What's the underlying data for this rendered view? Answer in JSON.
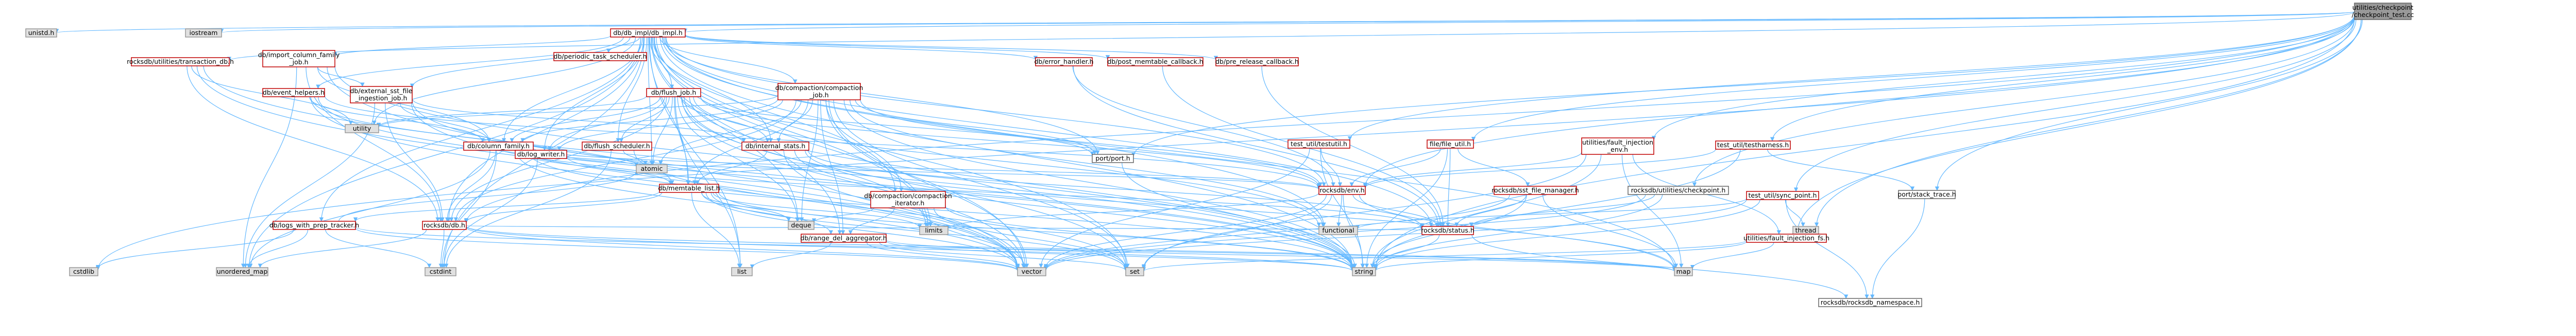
{
  "title": "utilities/checkpoint/checkpoint_test.cc include dependency graph",
  "colors": {
    "root_fill": "#999999",
    "root_stroke": "#666666",
    "local_fill": "#ffffff",
    "local_stroke": "#c00000",
    "sys_fill": "#e0e0e0",
    "sys_stroke": "#999999",
    "ok_fill": "#ffffff",
    "ok_stroke": "#666666",
    "edge": "#63b8ff",
    "text": "#000000"
  },
  "nodes": [
    {
      "id": "root",
      "type": "root",
      "lines": [
        "utilities/checkpoint",
        "/checkpoint_test.cc"
      ]
    },
    {
      "id": "unistd",
      "type": "sys",
      "lines": [
        "unistd.h"
      ]
    },
    {
      "id": "iostream",
      "type": "sys",
      "lines": [
        "iostream"
      ]
    },
    {
      "id": "dbimpl",
      "type": "local",
      "lines": [
        "db/db_impl/db_impl.h"
      ]
    },
    {
      "id": "atomic",
      "type": "sys",
      "lines": [
        "atomic"
      ]
    },
    {
      "id": "cstdint",
      "type": "sys",
      "lines": [
        "cstdint"
      ]
    },
    {
      "id": "deque",
      "type": "sys",
      "lines": [
        "deque"
      ]
    },
    {
      "id": "functional",
      "type": "sys",
      "lines": [
        "functional"
      ]
    },
    {
      "id": "limits",
      "type": "sys",
      "lines": [
        "limits"
      ]
    },
    {
      "id": "list",
      "type": "sys",
      "lines": [
        "list"
      ]
    },
    {
      "id": "map",
      "type": "sys",
      "lines": [
        "map"
      ]
    },
    {
      "id": "set",
      "type": "sys",
      "lines": [
        "set"
      ]
    },
    {
      "id": "string",
      "type": "sys",
      "lines": [
        "string"
      ]
    },
    {
      "id": "utility",
      "type": "sys",
      "lines": [
        "utility"
      ]
    },
    {
      "id": "vector",
      "type": "sys",
      "lines": [
        "vector"
      ]
    },
    {
      "id": "unordered_map",
      "type": "sys",
      "lines": [
        "unordered_map"
      ]
    },
    {
      "id": "cstdlib",
      "type": "sys",
      "lines": [
        "cstdlib"
      ]
    },
    {
      "id": "thread",
      "type": "sys",
      "lines": [
        "thread"
      ]
    },
    {
      "id": "colfam",
      "type": "local",
      "lines": [
        "db/column_family.h"
      ]
    },
    {
      "id": "compiter",
      "type": "local",
      "lines": [
        "db/compaction/compaction",
        "_iterator.h"
      ]
    },
    {
      "id": "compjob",
      "type": "local",
      "lines": [
        "db/compaction/compaction",
        "_job.h"
      ]
    },
    {
      "id": "errhandler",
      "type": "local",
      "lines": [
        "db/error_handler.h"
      ]
    },
    {
      "id": "evhelpers",
      "type": "local",
      "lines": [
        "db/event_helpers.h"
      ]
    },
    {
      "id": "extsst",
      "type": "local",
      "lines": [
        "db/external_sst_file",
        "_ingestion_job.h"
      ]
    },
    {
      "id": "flushjob",
      "type": "local",
      "lines": [
        "db/flush_job.h"
      ]
    },
    {
      "id": "flushsched",
      "type": "local",
      "lines": [
        "db/flush_scheduler.h"
      ]
    },
    {
      "id": "importcf",
      "type": "local",
      "lines": [
        "db/import_column_family",
        "_job.h"
      ]
    },
    {
      "id": "internalstats",
      "type": "local",
      "lines": [
        "db/internal_stats.h"
      ]
    },
    {
      "id": "logwriter",
      "type": "local",
      "lines": [
        "db/log_writer.h"
      ]
    },
    {
      "id": "logsprep",
      "type": "local",
      "lines": [
        "db/logs_with_prep_tracker.h"
      ]
    },
    {
      "id": "memlist",
      "type": "local",
      "lines": [
        "db/memtable_list.h"
      ]
    },
    {
      "id": "periodic",
      "type": "local",
      "lines": [
        "db/periodic_task_scheduler.h"
      ]
    },
    {
      "id": "postmem",
      "type": "local",
      "lines": [
        "db/post_memtable_callback.h"
      ]
    },
    {
      "id": "prerelease",
      "type": "local",
      "lines": [
        "db/pre_release_callback.h"
      ]
    },
    {
      "id": "rangedel",
      "type": "local",
      "lines": [
        "db/range_del_aggregator.h"
      ]
    },
    {
      "id": "portport",
      "type": "ok",
      "lines": [
        "port/port.h"
      ]
    },
    {
      "id": "stacktrace",
      "type": "ok",
      "lines": [
        "port/stack_trace.h"
      ]
    },
    {
      "id": "rocksdb_db",
      "type": "local",
      "lines": [
        "rocksdb/db.h"
      ]
    },
    {
      "id": "rocksdb_env",
      "type": "local",
      "lines": [
        "rocksdb/env.h"
      ]
    },
    {
      "id": "rocksdb_status",
      "type": "local",
      "lines": [
        "rocksdb/status.h"
      ]
    },
    {
      "id": "rocksdb_ns",
      "type": "ok",
      "lines": [
        "rocksdb/rocksdb_namespace.h"
      ]
    },
    {
      "id": "sstfilemgr",
      "type": "local",
      "lines": [
        "rocksdb/sst_file_manager.h"
      ]
    },
    {
      "id": "util_checkpoint",
      "type": "ok",
      "lines": [
        "rocksdb/utilities/checkpoint.h"
      ]
    },
    {
      "id": "util_txdb",
      "type": "local",
      "lines": [
        "rocksdb/utilities/transaction_db.h"
      ]
    },
    {
      "id": "fileutil",
      "type": "local",
      "lines": [
        "file/file_util.h"
      ]
    },
    {
      "id": "testharness",
      "type": "local",
      "lines": [
        "test_util/testharness.h"
      ]
    },
    {
      "id": "syncpoint",
      "type": "local",
      "lines": [
        "test_util/sync_point.h"
      ]
    },
    {
      "id": "testutil",
      "type": "local",
      "lines": [
        "test_util/testutil.h"
      ]
    },
    {
      "id": "faultenv",
      "type": "local",
      "lines": [
        "utilities/fault_injection",
        "_env.h"
      ]
    },
    {
      "id": "faultfs",
      "type": "local",
      "lines": [
        "utilities/fault_injection_fs.h"
      ]
    }
  ],
  "edges": [
    [
      "root",
      "unistd"
    ],
    [
      "root",
      "iostream"
    ],
    [
      "root",
      "dbimpl"
    ],
    [
      "root",
      "rocksdb_db"
    ],
    [
      "root",
      "rocksdb_env"
    ],
    [
      "root",
      "util_checkpoint"
    ],
    [
      "root",
      "util_txdb"
    ],
    [
      "root",
      "fileutil"
    ],
    [
      "root",
      "testharness"
    ],
    [
      "root",
      "syncpoint"
    ],
    [
      "root",
      "testutil"
    ],
    [
      "root",
      "faultenv"
    ],
    [
      "root",
      "faultfs"
    ],
    [
      "root",
      "stacktrace"
    ],
    [
      "root",
      "thread"
    ],
    [
      "root",
      "string"
    ],
    [
      "root",
      "cstdlib"
    ],
    [
      "root",
      "portport"
    ],
    [
      "dbimpl",
      "atomic"
    ],
    [
      "dbimpl",
      "cstdint"
    ],
    [
      "dbimpl",
      "deque"
    ],
    [
      "dbimpl",
      "functional"
    ],
    [
      "dbimpl",
      "limits"
    ],
    [
      "dbimpl",
      "list"
    ],
    [
      "dbimpl",
      "map"
    ],
    [
      "dbimpl",
      "set"
    ],
    [
      "dbimpl",
      "string"
    ],
    [
      "dbimpl",
      "utility"
    ],
    [
      "dbimpl",
      "vector"
    ],
    [
      "dbimpl",
      "colfam"
    ],
    [
      "dbimpl",
      "compiter"
    ],
    [
      "dbimpl",
      "compjob"
    ],
    [
      "dbimpl",
      "errhandler"
    ],
    [
      "dbimpl",
      "evhelpers"
    ],
    [
      "dbimpl",
      "extsst"
    ],
    [
      "dbimpl",
      "flushjob"
    ],
    [
      "dbimpl",
      "flushsched"
    ],
    [
      "dbimpl",
      "importcf"
    ],
    [
      "dbimpl",
      "internalstats"
    ],
    [
      "dbimpl",
      "logwriter"
    ],
    [
      "dbimpl",
      "logsprep"
    ],
    [
      "dbimpl",
      "memlist"
    ],
    [
      "dbimpl",
      "periodic"
    ],
    [
      "dbimpl",
      "postmem"
    ],
    [
      "dbimpl",
      "prerelease"
    ],
    [
      "dbimpl",
      "rangedel"
    ],
    [
      "dbimpl",
      "rocksdb_db"
    ],
    [
      "dbimpl",
      "rocksdb_env"
    ],
    [
      "dbimpl",
      "rocksdb_status"
    ],
    [
      "dbimpl",
      "portport"
    ],
    [
      "dbimpl",
      "unordered_map"
    ],
    [
      "colfam",
      "atomic"
    ],
    [
      "colfam",
      "string"
    ],
    [
      "colfam",
      "unordered_map"
    ],
    [
      "colfam",
      "vector"
    ],
    [
      "colfam",
      "rocksdb_db"
    ],
    [
      "colfam",
      "rocksdb_env"
    ],
    [
      "colfam",
      "memlist"
    ],
    [
      "colfam",
      "cstdint"
    ],
    [
      "compiter",
      "deque"
    ],
    [
      "compiter",
      "string"
    ],
    [
      "compiter",
      "vector"
    ],
    [
      "compiter",
      "rangedel"
    ],
    [
      "compiter",
      "set"
    ],
    [
      "compjob",
      "atomic"
    ],
    [
      "compjob",
      "deque"
    ],
    [
      "compjob",
      "functional"
    ],
    [
      "compjob",
      "limits"
    ],
    [
      "compjob",
      "set"
    ],
    [
      "compjob",
      "string"
    ],
    [
      "compjob",
      "utility"
    ],
    [
      "compjob",
      "vector"
    ],
    [
      "compjob",
      "colfam"
    ],
    [
      "compjob",
      "compiter"
    ],
    [
      "compjob",
      "internalstats"
    ],
    [
      "compjob",
      "logwriter"
    ],
    [
      "compjob",
      "memlist"
    ],
    [
      "compjob",
      "rangedel"
    ],
    [
      "compjob",
      "portport"
    ],
    [
      "compjob",
      "rocksdb_env"
    ],
    [
      "compjob",
      "rocksdb_db"
    ],
    [
      "errhandler",
      "rocksdb_status"
    ],
    [
      "errhandler",
      "rocksdb_env"
    ],
    [
      "evhelpers",
      "memlist"
    ],
    [
      "evhelpers",
      "colfam"
    ],
    [
      "evhelpers",
      "rocksdb_env"
    ],
    [
      "evhelpers",
      "vector"
    ],
    [
      "evhelpers",
      "string"
    ],
    [
      "extsst",
      "string"
    ],
    [
      "extsst",
      "unordered_map"
    ],
    [
      "extsst",
      "vector"
    ],
    [
      "extsst",
      "colfam"
    ],
    [
      "extsst",
      "internalstats"
    ],
    [
      "extsst",
      "rocksdb_db"
    ],
    [
      "flushjob",
      "atomic"
    ],
    [
      "flushjob",
      "deque"
    ],
    [
      "flushjob",
      "functional"
    ],
    [
      "flushjob",
      "limits"
    ],
    [
      "flushjob",
      "list"
    ],
    [
      "flushjob",
      "set"
    ],
    [
      "flushjob",
      "string"
    ],
    [
      "flushjob",
      "utility"
    ],
    [
      "flushjob",
      "vector"
    ],
    [
      "flushjob",
      "colfam"
    ],
    [
      "flushjob",
      "flushsched"
    ],
    [
      "flushjob",
      "internalstats"
    ],
    [
      "flushjob",
      "logwriter"
    ],
    [
      "flushjob",
      "memlist"
    ],
    [
      "flushjob",
      "portport"
    ],
    [
      "flushjob",
      "rocksdb_db"
    ],
    [
      "flushjob",
      "rocksdb_env"
    ],
    [
      "flushsched",
      "atomic"
    ],
    [
      "flushsched",
      "cstdint"
    ],
    [
      "flushsched",
      "set"
    ],
    [
      "importcf",
      "string"
    ],
    [
      "importcf",
      "unordered_map"
    ],
    [
      "importcf",
      "vector"
    ],
    [
      "importcf",
      "colfam"
    ],
    [
      "importcf",
      "extsst"
    ],
    [
      "importcf",
      "rocksdb_db"
    ],
    [
      "internalstats",
      "map"
    ],
    [
      "internalstats",
      "memory"
    ],
    [
      "internalstats",
      "string"
    ],
    [
      "internalstats",
      "vector"
    ],
    [
      "internalstats",
      "memlist"
    ],
    [
      "internalstats",
      "rocksdb_status"
    ],
    [
      "logwriter",
      "cstdint"
    ],
    [
      "logwriter",
      "memory"
    ],
    [
      "logwriter",
      "rocksdb_status"
    ],
    [
      "logwriter",
      "rocksdb_env"
    ],
    [
      "logsprep",
      "atomic"
    ],
    [
      "logsprep",
      "cstdint"
    ],
    [
      "logsprep",
      "cstdlib"
    ],
    [
      "logsprep",
      "map"
    ],
    [
      "logsprep",
      "unordered_map"
    ],
    [
      "logsprep",
      "vector"
    ],
    [
      "memlist",
      "deque"
    ],
    [
      "memlist",
      "limits"
    ],
    [
      "memlist",
      "list"
    ],
    [
      "memlist",
      "set"
    ],
    [
      "memlist",
      "string"
    ],
    [
      "memlist",
      "vector"
    ],
    [
      "memlist",
      "rangedel"
    ],
    [
      "memlist",
      "logsprep"
    ],
    [
      "memlist",
      "rocksdb_db"
    ],
    [
      "postmem",
      "rocksdb_status"
    ],
    [
      "prerelease",
      "rocksdb_status"
    ],
    [
      "rangedel",
      "map"
    ],
    [
      "rangedel",
      "set"
    ],
    [
      "rangedel",
      "string"
    ],
    [
      "rangedel",
      "vector"
    ],
    [
      "rangedel",
      "list"
    ],
    [
      "portport",
      "string"
    ],
    [
      "stacktrace",
      "rocksdb_ns"
    ],
    [
      "rocksdb_db",
      "cstdint"
    ],
    [
      "rocksdb_db",
      "map"
    ],
    [
      "rocksdb_db",
      "string"
    ],
    [
      "rocksdb_db",
      "unordered_map"
    ],
    [
      "rocksdb_db",
      "vector"
    ],
    [
      "rocksdb_db",
      "rocksdb_status"
    ],
    [
      "rocksdb_env",
      "functional"
    ],
    [
      "rocksdb_env",
      "limits"
    ],
    [
      "rocksdb_env",
      "map"
    ],
    [
      "rocksdb_env",
      "string"
    ],
    [
      "rocksdb_env",
      "vector"
    ],
    [
      "rocksdb_env",
      "rocksdb_status"
    ],
    [
      "rocksdb_env",
      "set"
    ],
    [
      "rocksdb_status",
      "string"
    ],
    [
      "rocksdb_status",
      "rocksdb_ns"
    ],
    [
      "sstfilemgr",
      "map"
    ],
    [
      "sstfilemgr",
      "string"
    ],
    [
      "sstfilemgr",
      "vector"
    ],
    [
      "sstfilemgr",
      "rocksdb_status"
    ],
    [
      "util_checkpoint",
      "string"
    ],
    [
      "util_checkpoint",
      "vector"
    ],
    [
      "util_checkpoint",
      "rocksdb_status"
    ],
    [
      "util_txdb",
      "string"
    ],
    [
      "util_txdb",
      "utility"
    ],
    [
      "util_txdb",
      "vector"
    ],
    [
      "util_txdb",
      "rocksdb_db"
    ],
    [
      "fileutil",
      "string"
    ],
    [
      "fileutil",
      "rocksdb_env"
    ],
    [
      "fileutil",
      "rocksdb_status"
    ],
    [
      "fileutil",
      "sstfilemgr"
    ],
    [
      "testharness",
      "stacktrace"
    ],
    [
      "testharness",
      "rocksdb_env"
    ],
    [
      "testharness",
      "string"
    ],
    [
      "syncpoint",
      "functional"
    ],
    [
      "syncpoint",
      "string"
    ],
    [
      "syncpoint",
      "thread"
    ],
    [
      "syncpoint",
      "vector"
    ],
    [
      "syncpoint",
      "rocksdb_ns"
    ],
    [
      "testutil",
      "string"
    ],
    [
      "testutil",
      "vector"
    ],
    [
      "testutil",
      "rocksdb_env"
    ],
    [
      "faultenv",
      "map"
    ],
    [
      "faultenv",
      "set"
    ],
    [
      "faultenv",
      "string"
    ],
    [
      "faultenv",
      "rocksdb_env"
    ],
    [
      "faultenv",
      "faultfs"
    ],
    [
      "faultfs",
      "map"
    ],
    [
      "faultfs",
      "set"
    ],
    [
      "faultfs",
      "string"
    ]
  ]
}
